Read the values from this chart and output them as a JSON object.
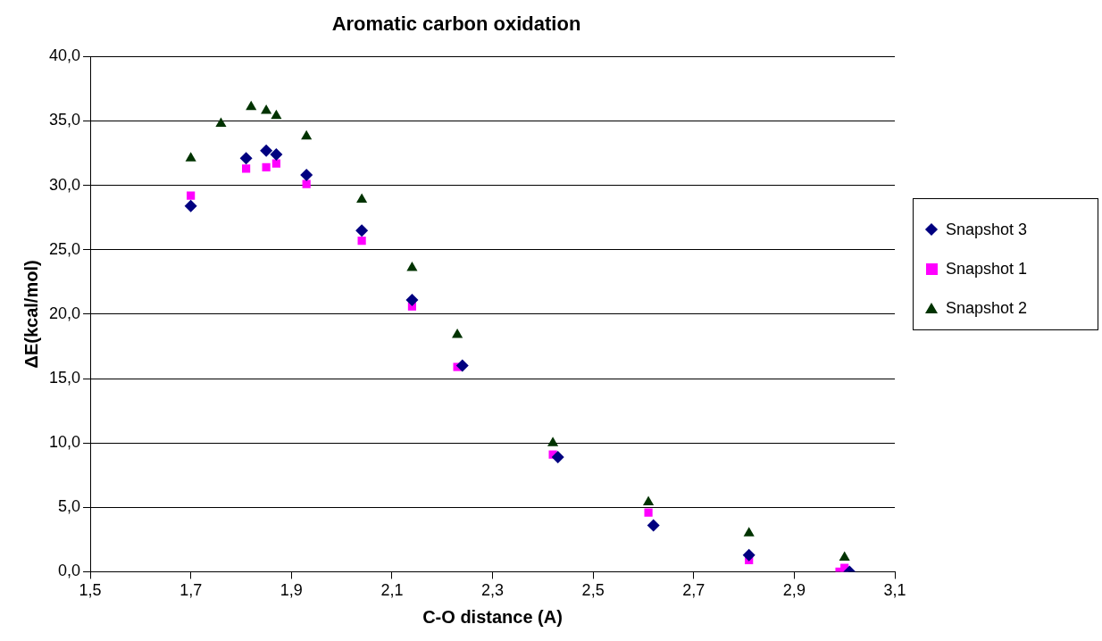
{
  "chart_data": {
    "type": "scatter",
    "title": "Aromatic carbon oxidation",
    "xlabel": "C-O distance (A)",
    "ylabel": "ΔE(kcal/mol)",
    "xlim": [
      1.5,
      3.1
    ],
    "xticks": [
      {
        "value": 1.5,
        "label": "1,5"
      },
      {
        "value": 1.7,
        "label": "1,7"
      },
      {
        "value": 1.9,
        "label": "1,9"
      },
      {
        "value": 2.1,
        "label": "2,1"
      },
      {
        "value": 2.3,
        "label": "2,3"
      },
      {
        "value": 2.5,
        "label": "2,5"
      },
      {
        "value": 2.7,
        "label": "2,7"
      },
      {
        "value": 2.9,
        "label": "2,9"
      },
      {
        "value": 3.1,
        "label": "3,1"
      }
    ],
    "ylim": [
      0,
      40
    ],
    "yticks": [
      {
        "value": 0,
        "label": "0,0"
      },
      {
        "value": 5,
        "label": "5,0"
      },
      {
        "value": 10,
        "label": "10,0"
      },
      {
        "value": 15,
        "label": "15,0"
      },
      {
        "value": 20,
        "label": "20,0"
      },
      {
        "value": 25,
        "label": "25,0"
      },
      {
        "value": 30,
        "label": "30,0"
      },
      {
        "value": 35,
        "label": "35,0"
      },
      {
        "value": 40,
        "label": "40,0"
      }
    ],
    "grid": "y",
    "legend": "right",
    "series": [
      {
        "name": "Snapshot 3",
        "color": "#000080",
        "marker": "diamond",
        "x": [
          1.7,
          1.81,
          1.85,
          1.87,
          1.93,
          2.04,
          2.14,
          2.24,
          2.43,
          2.62,
          2.81,
          3.01
        ],
        "values": [
          28.4,
          32.1,
          32.7,
          32.4,
          30.8,
          26.5,
          21.1,
          16.0,
          8.9,
          3.6,
          1.3,
          0.0
        ]
      },
      {
        "name": "Snapshot 1",
        "color": "#ff00ff",
        "marker": "square",
        "x": [
          1.7,
          1.81,
          1.85,
          1.87,
          1.93,
          2.04,
          2.14,
          2.23,
          2.42,
          2.61,
          2.81,
          2.99,
          3.0
        ],
        "values": [
          29.2,
          31.3,
          31.4,
          31.7,
          30.1,
          25.7,
          20.6,
          15.9,
          9.1,
          4.6,
          0.9,
          0.0,
          0.3
        ]
      },
      {
        "name": "Snapshot 2",
        "color": "#003300",
        "marker": "triangle",
        "x": [
          1.7,
          1.76,
          1.82,
          1.85,
          1.87,
          1.93,
          2.04,
          2.14,
          2.23,
          2.42,
          2.61,
          2.81,
          3.0
        ],
        "values": [
          32.1,
          34.8,
          36.1,
          35.8,
          35.4,
          33.8,
          28.9,
          23.6,
          18.4,
          10.0,
          5.4,
          3.0,
          1.1
        ]
      }
    ]
  }
}
